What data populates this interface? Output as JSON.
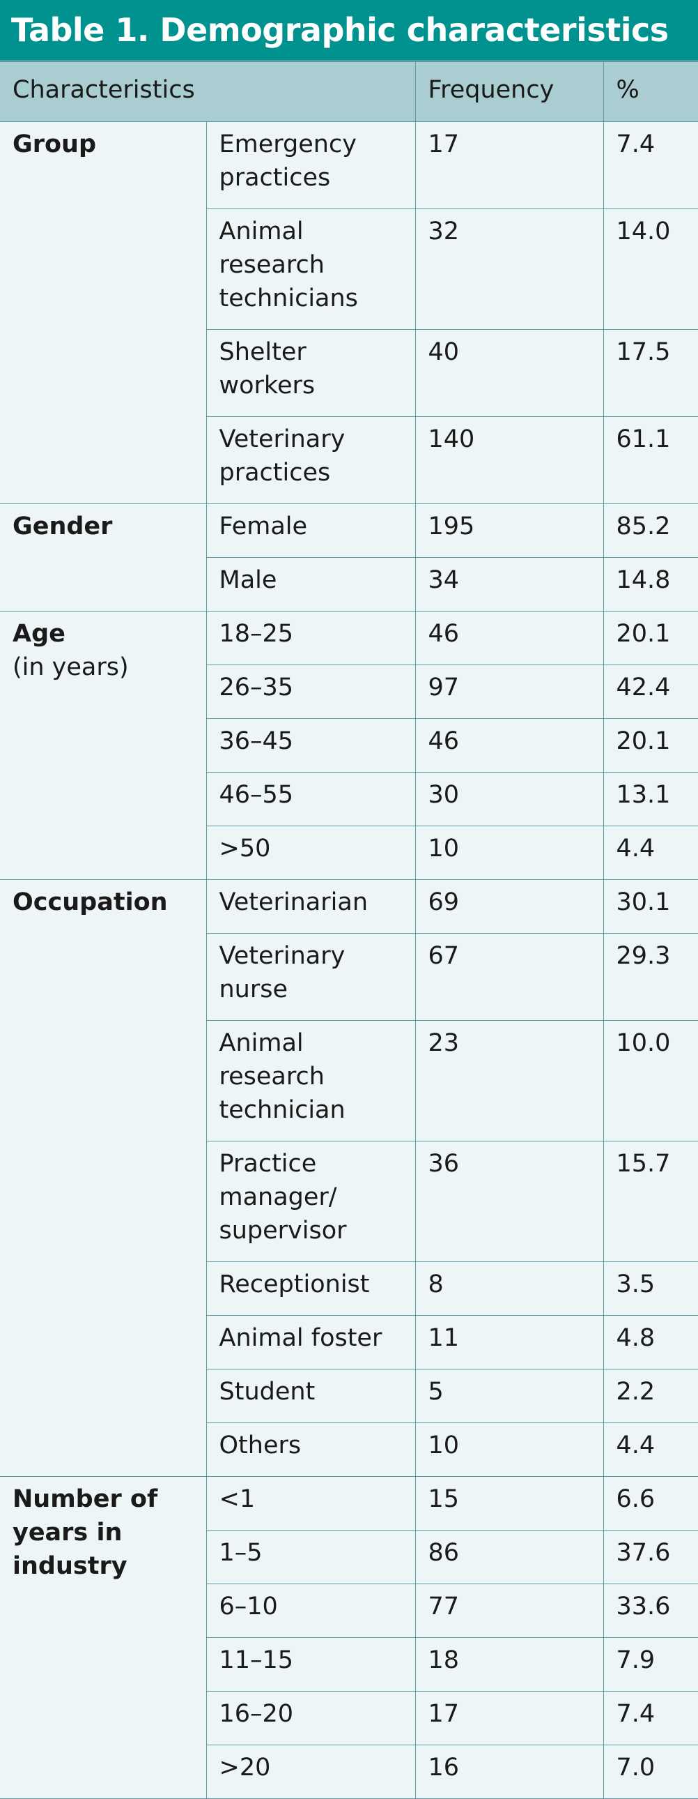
{
  "title": "Table 1. Demographic characteristics",
  "headers": {
    "characteristics": "Characteristics",
    "frequency": "Frequency",
    "percent": "%"
  },
  "groups": [
    {
      "label": "Group",
      "rows": [
        {
          "category": "Emergency practices",
          "frequency": "17",
          "percent": "7.4"
        },
        {
          "category": "Animal research technicians",
          "frequency": "32",
          "percent": "14.0"
        },
        {
          "category": "Shelter workers",
          "frequency": "40",
          "percent": "17.5"
        },
        {
          "category": "Veterinary practices",
          "frequency": "140",
          "percent": "61.1"
        }
      ]
    },
    {
      "label": "Gender",
      "rows": [
        {
          "category": "Female",
          "frequency": "195",
          "percent": "85.2"
        },
        {
          "category": "Male",
          "frequency": "34",
          "percent": "14.8"
        }
      ]
    },
    {
      "label": "Age",
      "sublabel": "(in years)",
      "rows": [
        {
          "category": "18–25",
          "frequency": "46",
          "percent": "20.1"
        },
        {
          "category": "26–35",
          "frequency": "97",
          "percent": "42.4"
        },
        {
          "category": "36–45",
          "frequency": "46",
          "percent": "20.1"
        },
        {
          "category": "46–55",
          "frequency": "30",
          "percent": "13.1"
        },
        {
          "category": ">50",
          "frequency": "10",
          "percent": "4.4"
        }
      ]
    },
    {
      "label": "Occupation",
      "rows": [
        {
          "category": "Veterinarian",
          "frequency": "69",
          "percent": "30.1"
        },
        {
          "category": "Veterinary nurse",
          "frequency": "67",
          "percent": "29.3"
        },
        {
          "category": "Animal research technician",
          "frequency": "23",
          "percent": "10.0"
        },
        {
          "category": "Practice manager/ supervisor",
          "frequency": "36",
          "percent": "15.7"
        },
        {
          "category": "Receptionist",
          "frequency": "8",
          "percent": "3.5"
        },
        {
          "category": "Animal foster",
          "frequency": "11",
          "percent": "4.8"
        },
        {
          "category": "Student",
          "frequency": "5",
          "percent": "2.2"
        },
        {
          "category": "Others",
          "frequency": "10",
          "percent": "4.4"
        }
      ]
    },
    {
      "label": "Number of years in industry",
      "rows": [
        {
          "category": "<1",
          "frequency": "15",
          "percent": "6.6"
        },
        {
          "category": "1–5",
          "frequency": "86",
          "percent": "37.6"
        },
        {
          "category": "6–10",
          "frequency": "77",
          "percent": "33.6"
        },
        {
          "category": "11–15",
          "frequency": "18",
          "percent": "7.9"
        },
        {
          "category": "16–20",
          "frequency": "17",
          "percent": "7.4"
        },
        {
          "category": ">20",
          "frequency": "16",
          "percent": "7.0"
        }
      ]
    }
  ]
}
